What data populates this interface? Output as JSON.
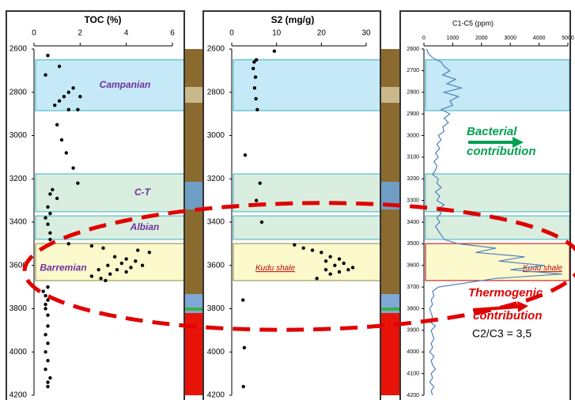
{
  "chart_data": [
    {
      "type": "scatter",
      "title": "TOC (%)",
      "xlim": [
        0,
        6
      ],
      "xticks": [
        0,
        2,
        4,
        6
      ],
      "ylim": [
        2600,
        4200
      ],
      "y_inverted": true,
      "yticks": [
        2600,
        2800,
        3000,
        3200,
        3400,
        3600,
        3800,
        4000,
        4200
      ],
      "color": "#000000",
      "depth": [
        2630,
        2720,
        2680,
        2780,
        2800,
        2820,
        2820,
        2840,
        2860,
        2880,
        2880,
        2950,
        3020,
        3080,
        3150,
        3220,
        3250,
        3270,
        3290,
        3330,
        3360,
        3380,
        3410,
        3450,
        3480,
        3500,
        3510,
        3520,
        3530,
        3540,
        3560,
        3570,
        3580,
        3590,
        3600,
        3600,
        3610,
        3620,
        3620,
        3630,
        3640,
        3650,
        3660,
        3670,
        3700,
        3720,
        3740,
        3760,
        3780,
        3800,
        3830,
        3880,
        3920,
        3960,
        4000,
        4040,
        4080,
        4120,
        4140,
        4160
      ],
      "values": [
        0.6,
        0.5,
        1.1,
        1.7,
        1.5,
        1.3,
        2.0,
        1.1,
        0.9,
        1.5,
        1.9,
        1.0,
        1.2,
        1.4,
        1.7,
        1.9,
        0.8,
        0.7,
        1.0,
        0.6,
        0.7,
        0.5,
        0.6,
        0.7,
        0.7,
        1.5,
        2.5,
        3.0,
        4.5,
        5.0,
        3.5,
        4.0,
        4.4,
        3.8,
        3.2,
        4.7,
        4.2,
        2.8,
        3.6,
        4.0,
        3.3,
        2.5,
        2.9,
        3.1,
        0.6,
        0.4,
        0.5,
        0.6,
        0.5,
        0.5,
        0.6,
        0.6,
        0.5,
        0.6,
        0.5,
        0.6,
        0.5,
        0.7,
        0.6,
        0.6
      ],
      "bands": [
        {
          "top": 2650,
          "base": 2885,
          "color": "#c5e9f6",
          "edge": "#3cb4c0",
          "label": "Campanian"
        },
        {
          "top": 3177,
          "base": 3352,
          "color": "#d9eedf",
          "edge": "#3cb4c0",
          "label": "C-T"
        },
        {
          "top": 3371,
          "base": 3480,
          "color": "#d9eedf",
          "edge": "#3cb4c0",
          "label": "Albian"
        },
        {
          "top": 3499,
          "base": 3670,
          "color": "#fcf9cd",
          "edge": "#8a8a3c",
          "label": "Barremian"
        }
      ]
    },
    {
      "type": "scatter",
      "title": "S2 (mg/g)",
      "xlim": [
        0,
        30
      ],
      "xticks": [
        0,
        10,
        20,
        30
      ],
      "ylim": [
        2600,
        4200
      ],
      "y_inverted": true,
      "yticks": [
        2600,
        2800,
        3000,
        3200,
        3400,
        3600,
        3800,
        4000,
        4200
      ],
      "color": "#000000",
      "depth": [
        2610,
        2660,
        2650,
        2690,
        2730,
        2780,
        2830,
        2880,
        3090,
        3220,
        3300,
        3400,
        3505,
        3520,
        3530,
        3540,
        3560,
        3570,
        3580,
        3590,
        3600,
        3610,
        3620,
        3630,
        3640,
        3620,
        3660,
        3760,
        3980,
        4160
      ],
      "values": [
        9.5,
        5.0,
        5.5,
        4.8,
        5.3,
        5.1,
        5.4,
        5.7,
        3.0,
        6.3,
        5.5,
        6.7,
        14,
        16,
        18,
        20,
        22,
        24,
        21,
        25,
        23,
        27,
        21,
        24,
        22,
        26,
        19,
        2.5,
        2.8,
        2.6
      ],
      "bands": [
        {
          "top": 2650,
          "base": 2885,
          "color": "#c5e9f6",
          "edge": "#3cb4c0"
        },
        {
          "top": 3177,
          "base": 3352,
          "color": "#d9eedf",
          "edge": "#3cb4c0"
        },
        {
          "top": 3371,
          "base": 3480,
          "color": "#d9eedf",
          "edge": "#3cb4c0"
        },
        {
          "top": 3499,
          "base": 3670,
          "color": "#fcf9cd",
          "edge": "#8a8a3c",
          "label": "Kudu shale"
        }
      ]
    },
    {
      "type": "line",
      "title": "C1-C5 (ppm)",
      "xlim": [
        0,
        5000
      ],
      "xticks": [
        0,
        1000,
        2000,
        3000,
        4000,
        5000
      ],
      "ylim": [
        2600,
        4200
      ],
      "y_inverted": true,
      "yticks": [
        2600,
        2700,
        2800,
        2900,
        3000,
        3100,
        3200,
        3300,
        3400,
        3500,
        3600,
        3700,
        3800,
        3900,
        4000,
        4100,
        4200
      ],
      "color": "#4f81bd",
      "depth": [
        2600,
        2620,
        2640,
        2660,
        2680,
        2700,
        2720,
        2740,
        2760,
        2780,
        2800,
        2820,
        2840,
        2860,
        2880,
        2900,
        2920,
        2940,
        2960,
        2980,
        3000,
        3020,
        3040,
        3060,
        3080,
        3100,
        3120,
        3140,
        3160,
        3180,
        3200,
        3220,
        3240,
        3260,
        3280,
        3300,
        3320,
        3340,
        3360,
        3380,
        3400,
        3420,
        3440,
        3460,
        3480,
        3500,
        3520,
        3540,
        3560,
        3580,
        3600,
        3620,
        3640,
        3660,
        3680,
        3700,
        3720,
        3740,
        3760,
        3780,
        3800,
        3820,
        3840,
        3860,
        3880,
        3900,
        3920,
        3940,
        3960,
        3980,
        4000,
        4020,
        4040,
        4060,
        4080,
        4100,
        4120,
        4140,
        4160,
        4180,
        4200
      ],
      "values": [
        100,
        150,
        300,
        600,
        700,
        900,
        650,
        1100,
        800,
        1300,
        700,
        1200,
        900,
        1000,
        600,
        900,
        700,
        850,
        650,
        700,
        500,
        600,
        450,
        550,
        400,
        500,
        350,
        450,
        400,
        300,
        500,
        450,
        600,
        400,
        550,
        450,
        700,
        500,
        600,
        450,
        550,
        400,
        500,
        600,
        700,
        1200,
        2500,
        1800,
        3500,
        2600,
        4200,
        3000,
        4800,
        2500,
        1500,
        500,
        300,
        350,
        250,
        300,
        200,
        250,
        300,
        200,
        400,
        250,
        300,
        350,
        250,
        300,
        200,
        350,
        250,
        300,
        400,
        250,
        300,
        200,
        350,
        250,
        300
      ],
      "bands": [
        {
          "top": 2650,
          "base": 2885,
          "color": "#c5e9f6",
          "edge": "#3cb4c0"
        },
        {
          "top": 3177,
          "base": 3352,
          "color": "#d9eedf",
          "edge": "#3cb4c0"
        },
        {
          "top": 3371,
          "base": 3480,
          "color": "#d9eedf",
          "edge": "#3cb4c0"
        },
        {
          "top": 3499,
          "base": 3670,
          "color": "#fcf9cd",
          "edge": "#c00000",
          "label": "Kudu shale"
        }
      ]
    }
  ],
  "annotations": {
    "bacterial": {
      "lines": [
        "Bacterial",
        "contribution"
      ],
      "color": "#00a050"
    },
    "thermogenic": {
      "lines": [
        "Thermogenic",
        "contribution"
      ],
      "color": "#e00000"
    },
    "ratio": "C2/C3 = 3,5"
  }
}
